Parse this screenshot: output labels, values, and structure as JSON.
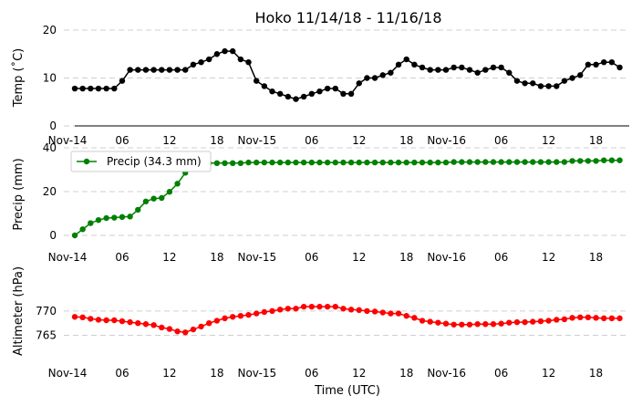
{
  "title": "Hoko 11/14/18 - 11/16/18",
  "xlabel": "Time (UTC)",
  "xtick_labels": [
    "Nov-14",
    "06",
    "12",
    "18",
    "Nov-15",
    "06",
    "12",
    "18",
    "Nov-16",
    "06",
    "12",
    "18"
  ],
  "chart_data": [
    {
      "type": "line",
      "name": "temperature",
      "ylabel": "Temp (˚C)",
      "yticks": [
        0,
        10,
        20
      ],
      "ylim": [
        0,
        20
      ],
      "color": "#000000",
      "x_hours": [
        0,
        1,
        2,
        3,
        4,
        5,
        6,
        7,
        8,
        9,
        10,
        11,
        12,
        13,
        14,
        15,
        16,
        17,
        18,
        19,
        20,
        21,
        22,
        23,
        24,
        25,
        26,
        27,
        28,
        29,
        30,
        31,
        32,
        33,
        34,
        35,
        36,
        37,
        38,
        39,
        40,
        41,
        42,
        43,
        44,
        45,
        46,
        47,
        48,
        49,
        50,
        51,
        52,
        53,
        54,
        55,
        56,
        57,
        58,
        59,
        60,
        61,
        62,
        63,
        64,
        65,
        66,
        67,
        68,
        69
      ],
      "values": [
        7.8,
        7.8,
        7.8,
        7.8,
        7.8,
        7.8,
        9.4,
        11.7,
        11.7,
        11.7,
        11.7,
        11.7,
        11.7,
        11.7,
        11.7,
        12.8,
        13.3,
        13.9,
        15.0,
        15.6,
        15.6,
        13.9,
        13.3,
        9.4,
        8.3,
        7.2,
        6.7,
        6.1,
        5.6,
        6.1,
        6.7,
        7.2,
        7.8,
        7.8,
        6.7,
        6.7,
        8.9,
        10.0,
        10.0,
        10.6,
        11.1,
        12.8,
        13.9,
        12.8,
        12.2,
        11.7,
        11.7,
        11.7,
        12.2,
        12.2,
        11.7,
        11.1,
        11.7,
        12.2,
        12.2,
        11.1,
        9.4,
        8.9,
        8.9,
        8.3,
        8.3,
        8.3,
        9.4,
        10.0,
        10.6,
        12.8,
        12.8,
        13.3,
        13.3,
        12.2
      ]
    },
    {
      "type": "line",
      "name": "precipitation",
      "ylabel": "Precip (mm)",
      "yticks": [
        0,
        20,
        40
      ],
      "ylim": [
        0,
        40
      ],
      "color": "#008000",
      "legend": "Precip (34.3 mm)",
      "x_hours": [
        0,
        1,
        2,
        3,
        4,
        5,
        6,
        7,
        8,
        9,
        10,
        11,
        12,
        13,
        14,
        15,
        16,
        17,
        18,
        19,
        20,
        21,
        22,
        23,
        24,
        25,
        26,
        27,
        28,
        29,
        30,
        31,
        32,
        33,
        34,
        35,
        36,
        37,
        38,
        39,
        40,
        41,
        42,
        43,
        44,
        45,
        46,
        47,
        48,
        49,
        50,
        51,
        52,
        53,
        54,
        55,
        56,
        57,
        58,
        59,
        60,
        61,
        62,
        63,
        64,
        65,
        66,
        67,
        68,
        69
      ],
      "values": [
        0.0,
        2.8,
        5.6,
        7.0,
        7.9,
        8.1,
        8.4,
        8.6,
        11.7,
        15.5,
        16.8,
        17.1,
        19.9,
        23.6,
        28.6,
        32.0,
        32.7,
        33.0,
        33.0,
        33.0,
        33.0,
        33.0,
        33.3,
        33.3,
        33.3,
        33.3,
        33.3,
        33.3,
        33.3,
        33.3,
        33.3,
        33.3,
        33.3,
        33.3,
        33.3,
        33.3,
        33.3,
        33.3,
        33.3,
        33.3,
        33.3,
        33.3,
        33.3,
        33.3,
        33.3,
        33.3,
        33.3,
        33.3,
        33.5,
        33.5,
        33.5,
        33.5,
        33.5,
        33.5,
        33.5,
        33.5,
        33.5,
        33.5,
        33.5,
        33.5,
        33.5,
        33.5,
        33.5,
        34.0,
        34.0,
        34.0,
        34.0,
        34.3,
        34.3,
        34.3
      ]
    },
    {
      "type": "line",
      "name": "altimeter",
      "ylabel": "Altimeter (hPa)",
      "yticks": [
        765,
        770
      ],
      "ylim": [
        760,
        773
      ],
      "color": "#ff0000",
      "x_hours": [
        0,
        1,
        2,
        3,
        4,
        5,
        6,
        7,
        8,
        9,
        10,
        11,
        12,
        13,
        14,
        15,
        16,
        17,
        18,
        19,
        20,
        21,
        22,
        23,
        24,
        25,
        26,
        27,
        28,
        29,
        30,
        31,
        32,
        33,
        34,
        35,
        36,
        37,
        38,
        39,
        40,
        41,
        42,
        43,
        44,
        45,
        46,
        47,
        48,
        49,
        50,
        51,
        52,
        53,
        54,
        55,
        56,
        57,
        58,
        59,
        60,
        61,
        62,
        63,
        64,
        65,
        66,
        67,
        68,
        69
      ],
      "values": [
        768.8,
        768.7,
        768.4,
        768.2,
        768.1,
        768.1,
        767.9,
        767.7,
        767.5,
        767.3,
        767.1,
        766.6,
        766.3,
        765.8,
        765.6,
        766.2,
        766.8,
        767.5,
        768.0,
        768.5,
        768.8,
        769.0,
        769.2,
        769.5,
        769.8,
        770.0,
        770.3,
        770.5,
        770.5,
        770.9,
        770.9,
        770.9,
        770.9,
        770.9,
        770.5,
        770.3,
        770.2,
        770.0,
        769.9,
        769.7,
        769.5,
        769.5,
        769.0,
        768.6,
        768.0,
        767.8,
        767.6,
        767.4,
        767.2,
        767.2,
        767.2,
        767.3,
        767.3,
        767.3,
        767.4,
        767.6,
        767.7,
        767.7,
        767.8,
        767.9,
        768.0,
        768.2,
        768.3,
        768.6,
        768.7,
        768.7,
        768.6,
        768.5,
        768.5,
        768.5
      ]
    }
  ]
}
